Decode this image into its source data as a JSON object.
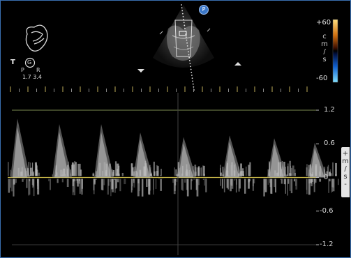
{
  "colorbar": {
    "top_label": "+60",
    "bottom_label": "-60",
    "unit_chars": [
      "c",
      "m",
      "/",
      "s"
    ]
  },
  "velocity_scale": {
    "unit_chars": [
      "+",
      "m",
      "/",
      "s",
      "-"
    ],
    "ticks": [
      {
        "value": 1.2,
        "label": "1.2"
      },
      {
        "value": 0.6,
        "label": "0.6"
      },
      {
        "value": 0,
        "label": "0"
      },
      {
        "value": -0.6,
        "label": "-0.6"
      },
      {
        "value": -1.2,
        "label": "-1.2"
      }
    ]
  },
  "probe": {
    "orientation_mark": "T",
    "marker_letter": "G",
    "left_letter": "P",
    "right_letter": "R",
    "freq_label": "1.7  3.4"
  },
  "sector_marker": "P",
  "colors": {
    "background": "#000000",
    "frame_border": "#3a6fb0",
    "baseline": "#c8b848",
    "scale_line": "#7a8a50"
  },
  "doppler_beats": 8
}
